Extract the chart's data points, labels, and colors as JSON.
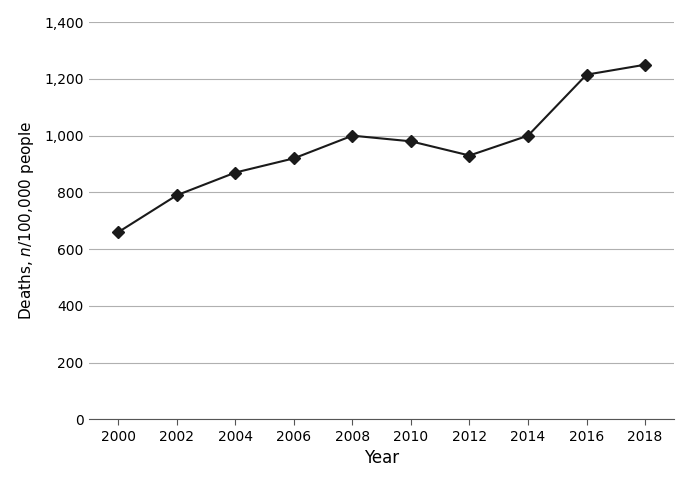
{
  "years": [
    2000,
    2002,
    2004,
    2006,
    2008,
    2010,
    2012,
    2014,
    2016,
    2018
  ],
  "values": [
    660,
    790,
    870,
    920,
    1000,
    980,
    930,
    1000,
    1215,
    1250
  ],
  "xlabel": "Year",
  "xlim": [
    1999,
    2019
  ],
  "ylim": [
    0,
    1400
  ],
  "yticks": [
    0,
    200,
    400,
    600,
    800,
    1000,
    1200,
    1400
  ],
  "ytick_labels": [
    "0",
    "200",
    "400",
    "600",
    "800",
    "1,000",
    "1,200",
    "1,400"
  ],
  "xticks": [
    2000,
    2002,
    2004,
    2006,
    2008,
    2010,
    2012,
    2014,
    2016,
    2018
  ],
  "line_color": "#1a1a1a",
  "marker": "D",
  "marker_size": 6,
  "background_color": "#ffffff",
  "grid_color": "#b0b0b0",
  "grid_linewidth": 0.8,
  "line_width": 1.5,
  "xlabel_fontsize": 12,
  "ylabel_fontsize": 11,
  "tick_fontsize": 10
}
